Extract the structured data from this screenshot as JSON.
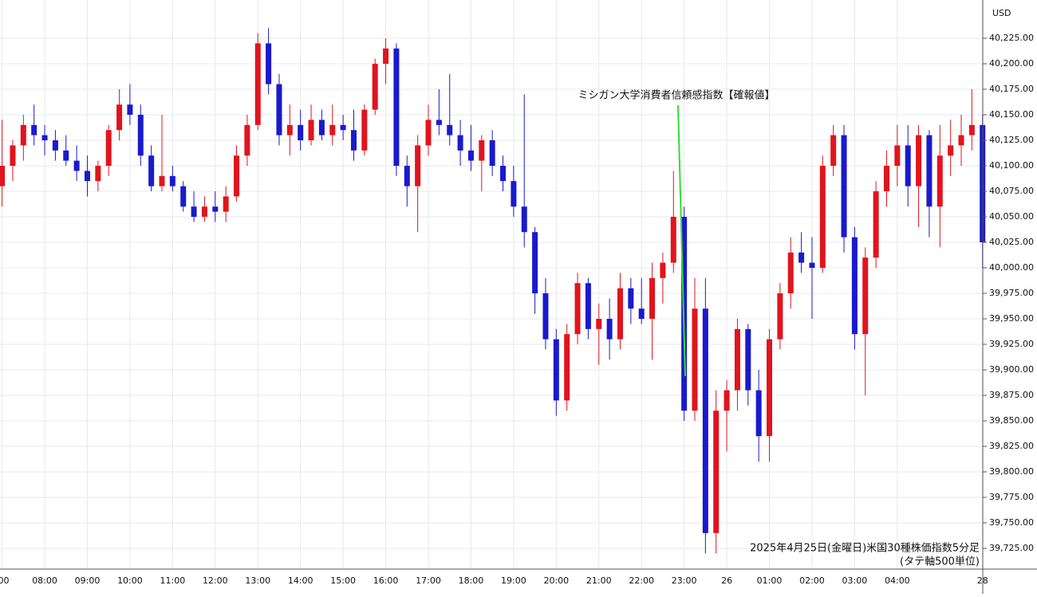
{
  "chart_data": {
    "type": "candlestick",
    "currency": "USD",
    "annotation": "ミシガン大学消費者信頼感指数【確報値】",
    "note": "2025年4月25日(金曜日)米国30種株価指数5分足",
    "scale_note": "(タテ軸500単位)",
    "up_color": "#e0141e",
    "down_color": "#1a1acc",
    "grid": true,
    "ylim": [
      39704.7,
      40262.5
    ],
    "yticks": [
      {
        "value": 39725,
        "label": "39,725.00"
      },
      {
        "value": 39750,
        "label": "39,750.00"
      },
      {
        "value": 39775,
        "label": "39,775.00"
      },
      {
        "value": 39800,
        "label": "39,800.00"
      },
      {
        "value": 39825,
        "label": "39,825.00"
      },
      {
        "value": 39850,
        "label": "39,850.00"
      },
      {
        "value": 39875,
        "label": "39,875.00"
      },
      {
        "value": 39900,
        "label": "39,900.00"
      },
      {
        "value": 39925,
        "label": "39,925.00"
      },
      {
        "value": 39950,
        "label": "39,950.00"
      },
      {
        "value": 39975,
        "label": "39,975.00"
      },
      {
        "value": 40000,
        "label": "40,000.00"
      },
      {
        "value": 40025,
        "label": "40,025.00"
      },
      {
        "value": 40050,
        "label": "40,050.00"
      },
      {
        "value": 40075,
        "label": "40,075.00"
      },
      {
        "value": 40100,
        "label": "40,100.00"
      },
      {
        "value": 40125,
        "label": "40,125.00"
      },
      {
        "value": 40150,
        "label": "40,150.00"
      },
      {
        "value": 40175,
        "label": "40,175.00"
      },
      {
        "value": 40200,
        "label": "40,200.00"
      },
      {
        "value": 40225,
        "label": "40,225.00"
      }
    ],
    "categories": [
      ":00",
      null,
      null,
      null,
      "08:00",
      null,
      null,
      null,
      "09:00",
      null,
      null,
      null,
      "10:00",
      null,
      null,
      null,
      "11:00",
      null,
      null,
      null,
      "12:00",
      null,
      null,
      null,
      "13:00",
      null,
      null,
      null,
      "14:00",
      null,
      null,
      null,
      "15:00",
      null,
      null,
      null,
      "16:00",
      null,
      null,
      null,
      "17:00",
      null,
      null,
      null,
      "18:00",
      null,
      null,
      null,
      "19:00",
      null,
      null,
      null,
      "20:00",
      null,
      null,
      null,
      "21:00",
      null,
      null,
      null,
      "22:00",
      null,
      null,
      null,
      "23:00",
      null,
      null,
      null,
      "26",
      null,
      null,
      null,
      "01:00",
      null,
      null,
      null,
      "02:00",
      null,
      null,
      null,
      "03:00",
      null,
      null,
      null,
      "04:00",
      null,
      null,
      null,
      null,
      null,
      null,
      null,
      "28"
    ],
    "open": [
      40080,
      40100,
      40120,
      40140,
      40130,
      40125,
      40115,
      40105,
      40095,
      40085,
      40100,
      40135,
      40160,
      40150,
      40110,
      40080,
      40090,
      40080,
      40060,
      40050,
      40060,
      40055,
      40070,
      40110,
      40140,
      40220,
      40180,
      40130,
      40140,
      40125,
      40145,
      40130,
      40140,
      40135,
      40115,
      40155,
      40200,
      40215,
      40100,
      40080,
      40120,
      40145,
      40140,
      40130,
      40115,
      40105,
      40125,
      40100,
      40085,
      40060,
      40035,
      39975,
      39930,
      39870,
      39935,
      39985,
      39940,
      39950,
      39930,
      39980,
      39960,
      39950,
      39990,
      40005,
      40050,
      39860,
      39960,
      39740,
      39860,
      39880,
      39940,
      39880,
      39835,
      39930,
      39975,
      40015,
      40005,
      40000,
      40100,
      40130,
      40030,
      39935,
      40010,
      40075,
      40100,
      40120,
      40080,
      40130,
      40060,
      40110,
      40120,
      40130,
      40140
    ],
    "high": [
      40145,
      40125,
      40150,
      40160,
      40140,
      40135,
      40130,
      40120,
      40110,
      40105,
      40140,
      40175,
      40180,
      40160,
      40120,
      40150,
      40100,
      40085,
      40075,
      40070,
      40075,
      40080,
      40120,
      40150,
      40230,
      40235,
      40190,
      40160,
      40155,
      40160,
      40155,
      40160,
      40150,
      40155,
      40160,
      40205,
      40225,
      40220,
      40110,
      40130,
      40160,
      40175,
      40190,
      40145,
      40140,
      40130,
      40135,
      40110,
      40100,
      40170,
      40040,
      39990,
      39940,
      39945,
      39995,
      39990,
      39965,
      39970,
      39995,
      39990,
      39990,
      40005,
      40015,
      40095,
      40060,
      39990,
      39990,
      39880,
      39890,
      39950,
      39945,
      39900,
      39940,
      39985,
      40030,
      40035,
      40030,
      40110,
      40140,
      40140,
      40040,
      40020,
      40085,
      40115,
      40140,
      40140,
      40140,
      40135,
      40140,
      40145,
      40150,
      40175,
      40150
    ],
    "low": [
      40060,
      40085,
      40105,
      40120,
      40110,
      40105,
      40100,
      40085,
      40070,
      40075,
      40090,
      40125,
      40140,
      40100,
      40075,
      40075,
      40075,
      40055,
      40045,
      40045,
      40045,
      40045,
      40065,
      40100,
      40135,
      40170,
      40120,
      40110,
      40115,
      40120,
      40125,
      40120,
      40125,
      40105,
      40110,
      40150,
      40180,
      40090,
      40060,
      40035,
      40110,
      40130,
      40120,
      40100,
      40095,
      40075,
      40090,
      40075,
      40050,
      40020,
      39955,
      39920,
      39855,
      39860,
      39925,
      39930,
      39905,
      39910,
      39920,
      39945,
      39945,
      39910,
      39965,
      39995,
      39850,
      39850,
      39720,
      39720,
      39820,
      39860,
      39865,
      39810,
      39810,
      39920,
      39960,
      39995,
      39950,
      39995,
      40090,
      40015,
      39920,
      39875,
      40000,
      40060,
      40080,
      40060,
      40040,
      40030,
      40020,
      40090,
      40100,
      40115,
      40000
    ],
    "close": [
      40100,
      40120,
      40140,
      40130,
      40125,
      40115,
      40105,
      40095,
      40085,
      40100,
      40135,
      40160,
      40150,
      40110,
      40080,
      40090,
      40080,
      40060,
      40050,
      40060,
      40055,
      40070,
      40110,
      40140,
      40220,
      40180,
      40130,
      40140,
      40125,
      40145,
      40130,
      40140,
      40135,
      40115,
      40155,
      40200,
      40215,
      40100,
      40080,
      40120,
      40145,
      40140,
      40130,
      40115,
      40105,
      40125,
      40100,
      40085,
      40060,
      40035,
      39975,
      39930,
      39870,
      39935,
      39985,
      39940,
      39950,
      39930,
      39980,
      39960,
      39950,
      39990,
      40005,
      40050,
      39860,
      39960,
      39740,
      39860,
      39880,
      39940,
      39880,
      39835,
      39930,
      39975,
      40015,
      40005,
      40000,
      40100,
      40130,
      40030,
      39935,
      40010,
      40075,
      40100,
      40120,
      40080,
      40130,
      40060,
      40110,
      40120,
      40130,
      40140,
      40025
    ]
  }
}
